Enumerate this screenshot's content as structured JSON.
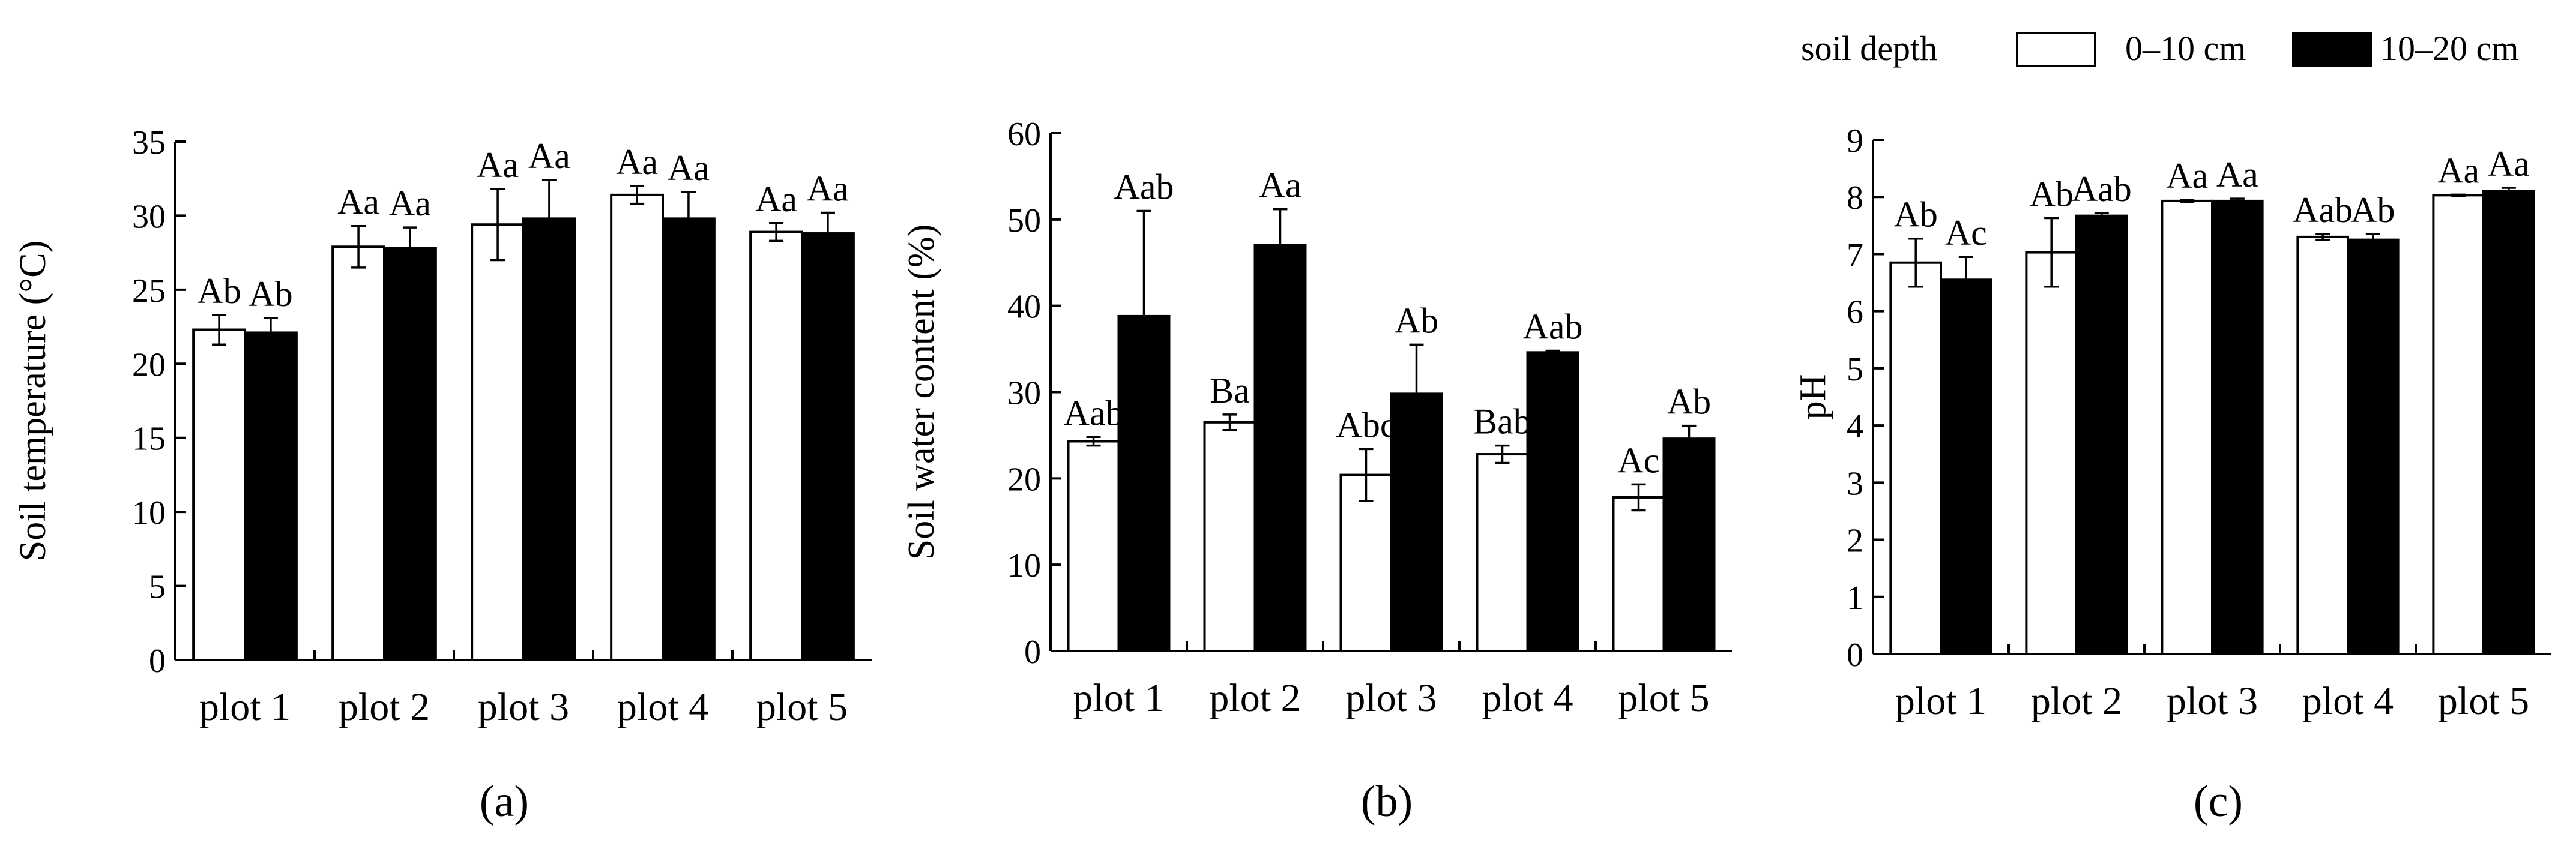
{
  "legend": {
    "title": "soil depth",
    "items": [
      {
        "label": "0–10 cm",
        "color": "#ffffff"
      },
      {
        "label": "10–20 cm",
        "color": "#000000"
      }
    ]
  },
  "chart_data": [
    {
      "type": "bar",
      "panel_label": "(a)",
      "ylabel": "Soil temperature (°C)",
      "ylim": [
        0,
        35
      ],
      "yticks": [
        "0",
        "5",
        "10",
        "15",
        "20",
        "25",
        "30",
        "35"
      ],
      "categories": [
        "plot 1",
        "plot 2",
        "plot 3",
        "plot 4",
        "plot 5"
      ],
      "series": [
        {
          "name": "0–10 cm",
          "values": [
            22.3,
            27.9,
            29.4,
            31.4,
            28.9
          ],
          "errors": [
            1.0,
            1.4,
            2.4,
            0.6,
            0.6
          ],
          "labels": [
            "Ab",
            "Aa",
            "Aa",
            "Aa",
            "Aa"
          ]
        },
        {
          "name": "10–20 cm",
          "values": [
            22.1,
            27.8,
            29.8,
            29.8,
            28.8
          ],
          "errors": [
            1.0,
            1.4,
            2.6,
            1.8,
            1.4
          ],
          "labels": [
            "Ab",
            "Aa",
            "Aa",
            "Aa",
            "Aa"
          ]
        }
      ]
    },
    {
      "type": "bar",
      "panel_label": "(b)",
      "ylabel": "Soil water content (%)",
      "ylim": [
        0,
        60
      ],
      "yticks": [
        "0",
        "10",
        "20",
        "30",
        "40",
        "50",
        "60"
      ],
      "categories": [
        "plot 1",
        "plot 2",
        "plot 3",
        "plot 4",
        "plot 5"
      ],
      "series": [
        {
          "name": "0–10 cm",
          "values": [
            24.3,
            26.5,
            20.4,
            22.8,
            17.8
          ],
          "errors": [
            0.5,
            0.9,
            3.0,
            1.0,
            1.5
          ],
          "labels": [
            "Aab",
            "Ba",
            "Abc",
            "Bab",
            "Ac"
          ]
        },
        {
          "name": "10–20 cm",
          "values": [
            38.8,
            47.0,
            29.8,
            34.6,
            24.6
          ],
          "errors": [
            12.2,
            4.2,
            5.7,
            0.2,
            1.5
          ],
          "labels": [
            "Aab",
            "Aa",
            "Ab",
            "Aab",
            "Ab"
          ]
        }
      ]
    },
    {
      "type": "bar",
      "panel_label": "(c)",
      "ylabel": "pH",
      "ylim": [
        0,
        9
      ],
      "yticks": [
        "0",
        "1",
        "2",
        "3",
        "4",
        "5",
        "6",
        "7",
        "8",
        "9"
      ],
      "categories": [
        "plot 1",
        "plot 2",
        "plot 3",
        "plot 4",
        "plot 5"
      ],
      "series": [
        {
          "name": "0–10 cm",
          "values": [
            6.85,
            7.03,
            7.93,
            7.3,
            8.03
          ],
          "errors": [
            0.42,
            0.6,
            0.02,
            0.05,
            0.01
          ],
          "labels": [
            "Ab",
            "Ab",
            "Aa",
            "Aab",
            "Aa"
          ]
        },
        {
          "name": "10–20 cm",
          "values": [
            6.55,
            7.67,
            7.93,
            7.25,
            8.1
          ],
          "errors": [
            0.4,
            0.05,
            0.04,
            0.1,
            0.06
          ],
          "labels": [
            "Ac",
            "Aab",
            "Aa",
            "Ab",
            "Aa"
          ]
        }
      ]
    }
  ]
}
